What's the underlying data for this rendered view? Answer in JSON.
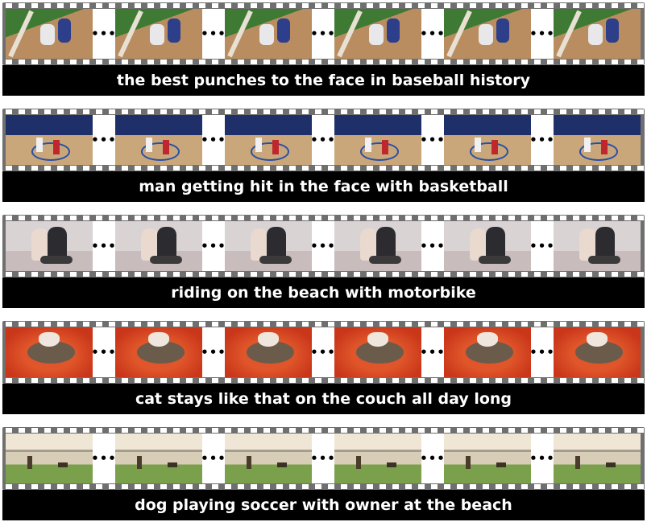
{
  "strips": [
    {
      "caption": "the best punches to the face in baseball history",
      "theme": "baseball"
    },
    {
      "caption": "man getting hit in the face with basketball",
      "theme": "basketball"
    },
    {
      "caption": "riding on the beach with motorbike",
      "theme": "beach-motorbike"
    },
    {
      "caption": "cat stays like that on the couch all day long",
      "theme": "cat-couch"
    },
    {
      "caption": "dog playing soccer with owner at the beach",
      "theme": "dog-soccer"
    }
  ],
  "separator": "•••",
  "colors": {
    "film": "#6f6f6f",
    "caption_bg": "#000000",
    "caption_text": "#ffffff"
  }
}
